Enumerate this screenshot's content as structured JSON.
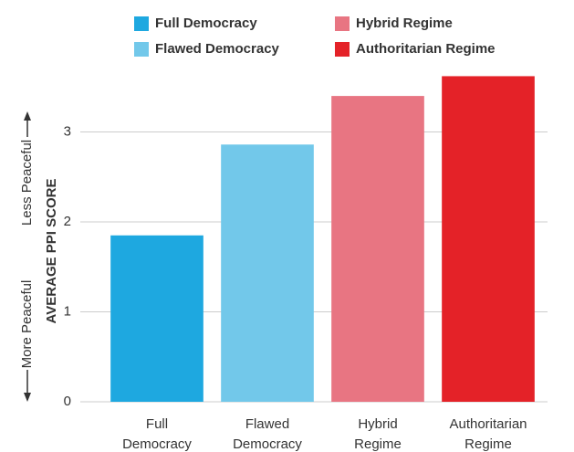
{
  "chart_data": {
    "type": "bar",
    "categories": [
      "Full Democracy",
      "Flawed Democracy",
      "Hybrid Regime",
      "Authoritarian Regime"
    ],
    "values": [
      1.85,
      2.86,
      3.4,
      3.62
    ],
    "colors": [
      "#1ea8e0",
      "#72c8ea",
      "#e87582",
      "#e42228"
    ],
    "ylabel": "AVERAGE PPI SCORE",
    "annotations": [
      "More Peaceful",
      "Less Peaceful"
    ],
    "ylim": [
      0,
      3.7
    ],
    "yticks": [
      0,
      1,
      2,
      3
    ],
    "grid": true
  }
}
